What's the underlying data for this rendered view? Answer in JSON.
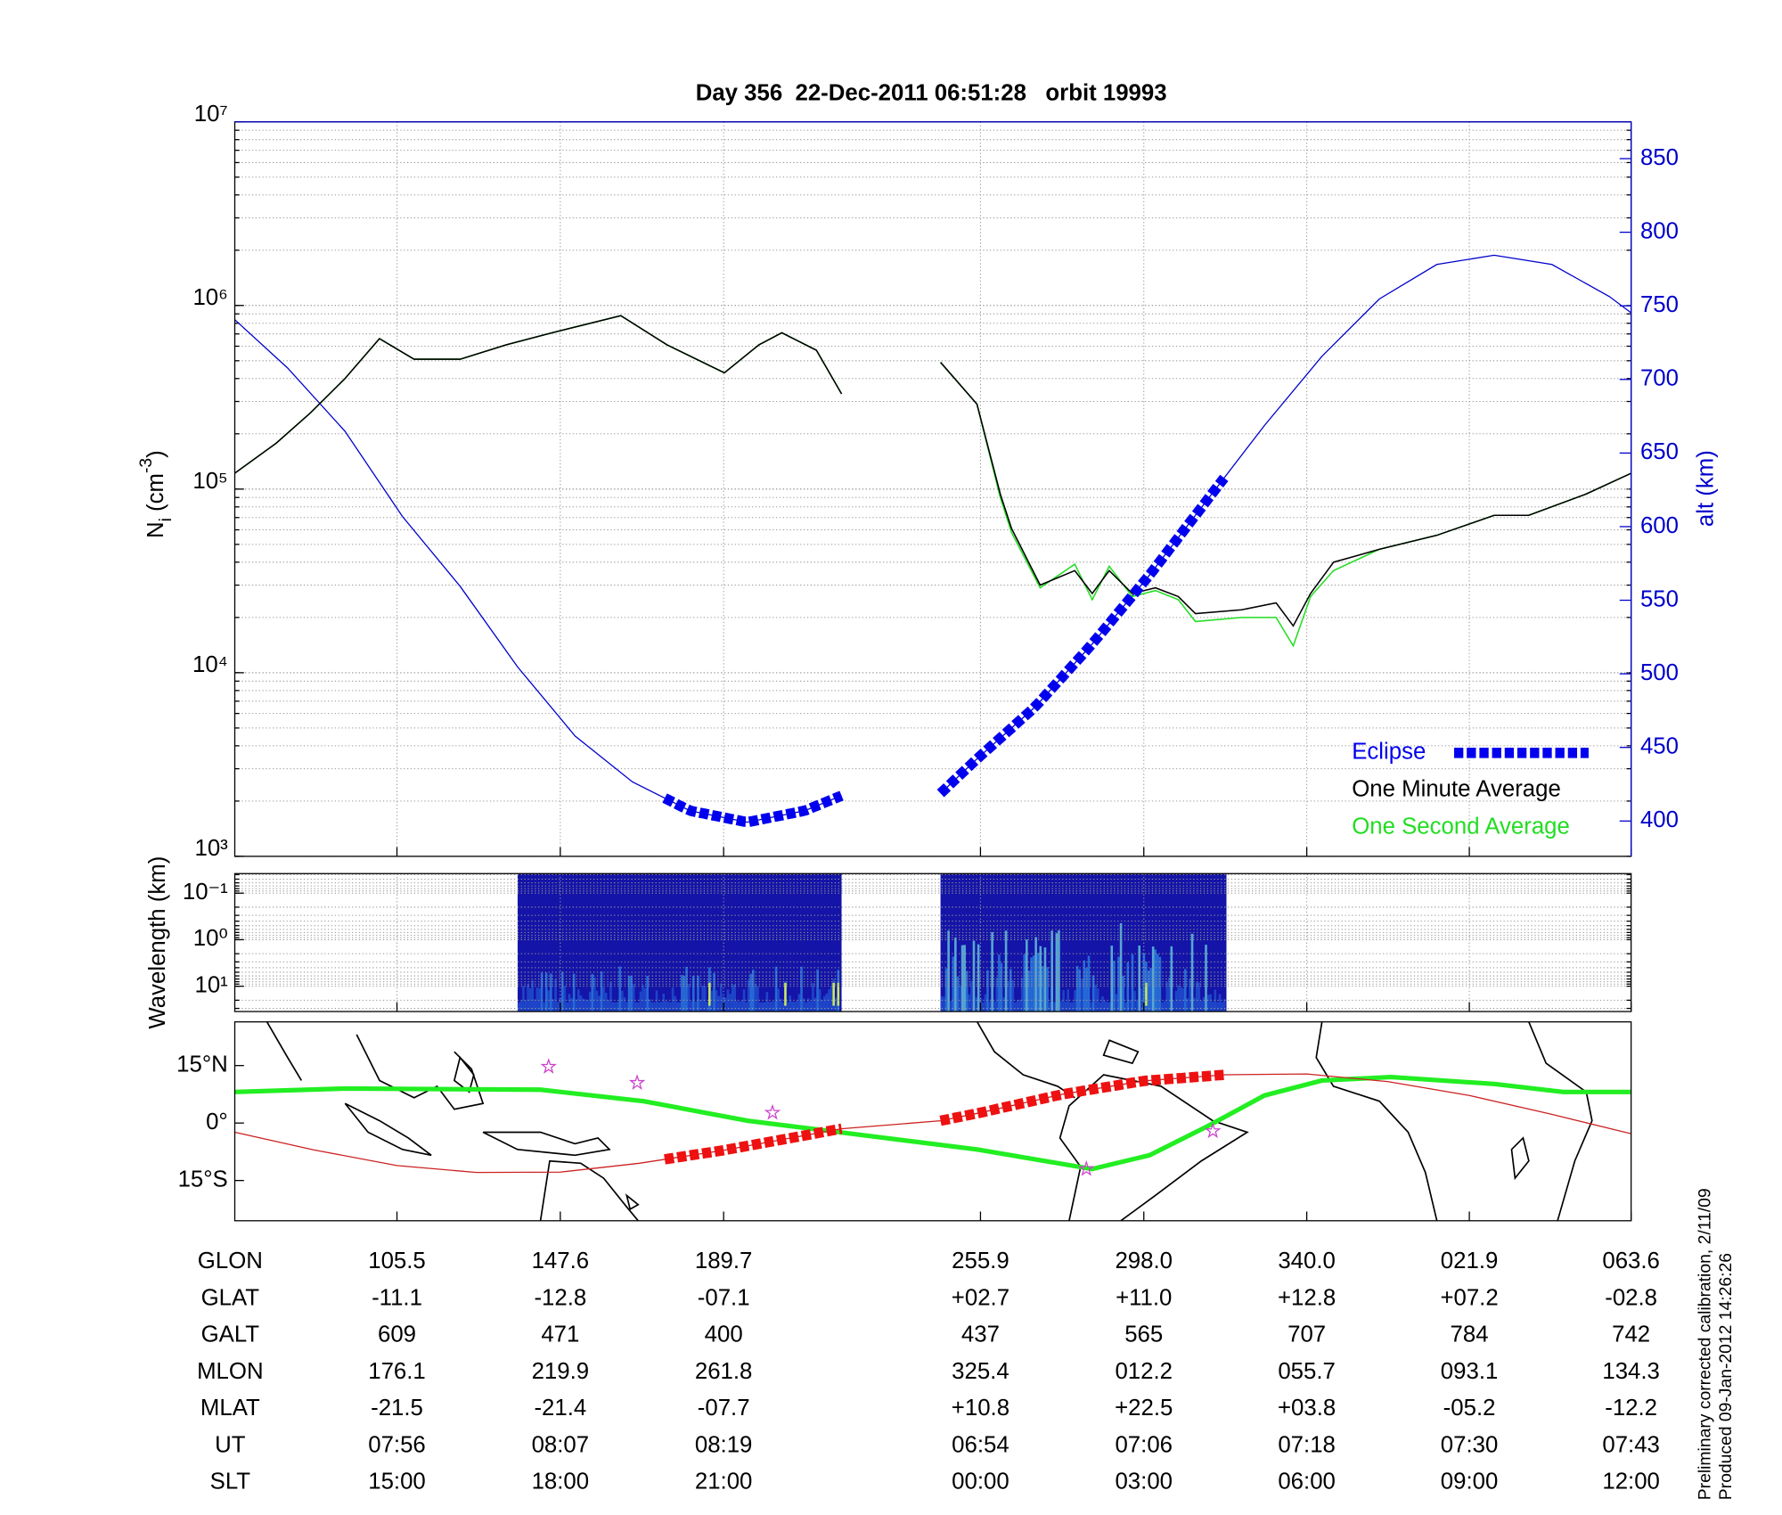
{
  "chart_data": [
    {
      "type": "line",
      "title": "Day 356  22-Dec-2011 06:51:28   orbit 19993",
      "ylabel": [
        "N",
        "i",
        " (cm",
        "-3",
        ")"
      ],
      "y2label": "alt (km)",
      "log": true,
      "grid": true,
      "legend": "lower right",
      "xlim": [
        63.7,
        423.6
      ],
      "xticks": [
        105.5,
        147.6,
        189.7,
        255.9,
        298.0,
        340.0,
        381.9,
        423.6
      ],
      "ylim": [
        1000,
        10000000
      ],
      "yticks": [
        {
          "value": 1000,
          "label": "10³"
        },
        {
          "value": 10000,
          "label": "10⁴"
        },
        {
          "value": 100000,
          "label": "10⁵"
        },
        {
          "value": 1000000,
          "label": "10⁶"
        },
        {
          "value": 10000000,
          "label": "10⁷"
        }
      ],
      "y2lim": [
        376,
        875
      ],
      "y2ticks": [
        400,
        450,
        500,
        550,
        600,
        650,
        700,
        750,
        800,
        850
      ],
      "eclipse": {
        "name": "Eclipse",
        "color": "#0000ee",
        "ranges": [
          [
            174.5,
            220.1
          ],
          [
            245.6,
            318.7
          ]
        ]
      },
      "series": [
        {
          "name": "One Minute Average",
          "color": "#000000",
          "x": [
            63.7,
            74.4,
            83.2,
            92.1,
            101.0,
            109.9,
            121.8,
            133.6,
            145.5,
            163.2,
            175.1,
            189.9,
            198.8,
            204.7,
            213.6,
            220.1,
            null,
            245.6,
            255.0,
            261.0,
            263.9,
            271.3,
            280.2,
            284.7,
            289.1,
            295.0,
            301.0,
            306.9,
            311.3,
            323.2,
            332.1,
            336.5,
            341.0,
            346.9,
            358.7,
            373.5,
            388.3,
            397.2,
            412.0,
            423.6
          ],
          "values": [
            122000,
            178000,
            260000,
            400000,
            660000,
            510000,
            510000,
            610000,
            710000,
            880000,
            610000,
            430000,
            610000,
            710000,
            570000,
            330000,
            null,
            490000,
            290000,
            94000,
            61000,
            30000,
            36000,
            27000,
            36000,
            27000,
            29000,
            26000,
            21000,
            22000,
            24000,
            18000,
            27000,
            40000,
            47000,
            56000,
            72000,
            72000,
            94000,
            122000
          ]
        },
        {
          "name": "One Second Average",
          "color": "#22dd22",
          "x": [
            63.7,
            74.4,
            83.2,
            92.1,
            101.0,
            109.9,
            121.8,
            133.6,
            145.5,
            163.2,
            175.1,
            189.9,
            198.8,
            204.7,
            213.6,
            220.1,
            null,
            245.6,
            255.0,
            261.0,
            263.9,
            271.3,
            280.2,
            284.7,
            289.1,
            295.0,
            301.0,
            306.9,
            311.3,
            323.2,
            332.1,
            336.5,
            341.0,
            346.9,
            358.7,
            373.5,
            388.3,
            397.2,
            412.0,
            423.6
          ],
          "values": [
            122000,
            178000,
            260000,
            400000,
            660000,
            510000,
            510000,
            610000,
            710000,
            880000,
            610000,
            430000,
            610000,
            710000,
            570000,
            330000,
            null,
            490000,
            290000,
            90000,
            58000,
            29000,
            39000,
            25000,
            38000,
            26000,
            28000,
            25000,
            19000,
            20000,
            20000,
            14000,
            26000,
            36000,
            47000,
            56000,
            72000,
            72000,
            94000,
            122000
          ]
        },
        {
          "axis": "y2",
          "color": "#0000cc",
          "x": [
            63.7,
            77.3,
            92.1,
            106.9,
            121.8,
            136.6,
            151.4,
            166.2,
            181.0,
            195.8,
            210.6,
            220.1,
            null,
            245.6,
            255.0,
            269.9,
            284.7,
            299.5,
            314.3,
            329.1,
            343.9,
            358.7,
            373.5,
            388.3,
            403.2,
            418.0,
            423.6
          ],
          "values": [
            740.6,
            707.8,
            664.8,
            607.0,
            559.4,
            504.7,
            457.8,
            426.6,
            407.0,
            399.2,
            407.0,
            417.2,
            null,
            418.8,
            442.2,
            477.3,
            520.3,
            567.2,
            618.0,
            668.8,
            715.6,
            754.7,
            778.1,
            784.4,
            778.1,
            756.3,
            745.3
          ]
        }
      ]
    },
    {
      "type": "spectrogram",
      "ylabel": "Wavelength (km)",
      "log": true,
      "grid": true,
      "xlim": [
        63.7,
        423.6
      ],
      "xticks": [
        105.5,
        147.6,
        189.7,
        255.9,
        298.0,
        340.0,
        381.9,
        423.6
      ],
      "ylim": [
        35,
        0.038
      ],
      "yticks": [
        {
          "value": 0.1,
          "label": "10⁻¹"
        },
        {
          "value": 1,
          "label": "10⁰"
        },
        {
          "value": 10,
          "label": "10¹"
        }
      ],
      "segments": [
        [
          136.6,
          220.1
        ],
        [
          245.6,
          319.3
        ]
      ]
    },
    {
      "type": "map",
      "xlim": [
        63.7,
        423.6
      ],
      "xticks": [
        105.5,
        147.6,
        189.7,
        255.9,
        298.0,
        340.0,
        381.9,
        423.6
      ],
      "ylim": [
        -25.5,
        26.4
      ],
      "yticks": [
        {
          "value": 15,
          "label": "15°N"
        },
        {
          "value": 0,
          "label": "0°"
        },
        {
          "value": -15,
          "label": "15°S"
        }
      ],
      "eclipse": {
        "color": "#ee1111",
        "ranges": [
          [
            174.5,
            220.1
          ],
          [
            245.6,
            318.7
          ]
        ]
      },
      "series": [
        {
          "color": "#22ee22",
          "x": [
            63.7,
            92.1,
            142.5,
            169.1,
            195.8,
            219.5,
            255.0,
            284.7,
            299.5,
            314.3,
            329.1,
            343.9,
            361.7,
            388.3,
            406.1,
            423.6
          ],
          "values": [
            8.1,
            9.0,
            8.7,
            5.7,
            0.6,
            -2.4,
            -6.9,
            -12.0,
            -8.4,
            -0.9,
            7.2,
            11.1,
            12.0,
            10.2,
            8.1,
            8.1
          ]
        },
        {
          "color": "#cc2222",
          "x": [
            63.7,
            84.0,
            105.5,
            126.0,
            147.6,
            168.0,
            189.7,
            220.0,
            245.6,
            255.9,
            277.0,
            298.0,
            319.0,
            340.0,
            361.0,
            381.9,
            403.0,
            423.6
          ],
          "values": [
            -2.4,
            -7.0,
            -11.1,
            -12.9,
            -12.8,
            -10.5,
            -7.1,
            -1.5,
            0.6,
            2.7,
            7.5,
            11.0,
            12.6,
            12.8,
            10.8,
            7.2,
            2.3,
            -2.8
          ]
        },
        {
          "type": "scatter",
          "color": "#cc44cc",
          "x": [
            144.6,
            167.4,
            202.3,
            283.2,
            315.8
          ],
          "values": [
            14.7,
            10.5,
            2.7,
            -12.0,
            -2.1
          ]
        }
      ]
    }
  ],
  "table": {
    "rows": [
      {
        "label": "GLON",
        "values": [
          "105.5",
          "147.6",
          "189.7",
          "255.9",
          "298.0",
          "340.0",
          "021.9",
          "063.6"
        ]
      },
      {
        "label": "GLAT",
        "values": [
          "-11.1",
          "-12.8",
          "-07.1",
          "+02.7",
          "+11.0",
          "+12.8",
          "+07.2",
          "-02.8"
        ]
      },
      {
        "label": "GALT",
        "values": [
          "609",
          "471",
          "400",
          "437",
          "565",
          "707",
          "784",
          "742"
        ]
      },
      {
        "label": "MLON",
        "values": [
          "176.1",
          "219.9",
          "261.8",
          "325.4",
          "012.2",
          "055.7",
          "093.1",
          "134.3"
        ]
      },
      {
        "label": "MLAT",
        "values": [
          "-21.5",
          "-21.4",
          "-07.7",
          "+10.8",
          "+22.5",
          "+03.8",
          "-05.2",
          "-12.2"
        ]
      },
      {
        "label": "UT",
        "values": [
          "07:56",
          "08:07",
          "08:19",
          "06:54",
          "07:06",
          "07:18",
          "07:30",
          "07:43"
        ]
      },
      {
        "label": "SLT",
        "values": [
          "15:00",
          "18:00",
          "21:00",
          "00:00",
          "03:00",
          "06:00",
          "09:00",
          "12:00"
        ]
      }
    ]
  },
  "notes": [
    "Preliminary corrected calibration, 2/11/09",
    "Produced 09-Jan-2012 14:26:26"
  ]
}
